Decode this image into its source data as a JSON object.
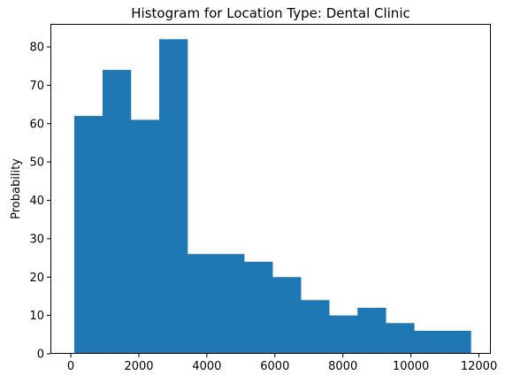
{
  "chart_data": {
    "type": "bar",
    "title": "Histogram for Location Type: Dental Clinic",
    "xlabel": "",
    "ylabel": "Probability",
    "bin_edges": [
      100,
      933,
      1766,
      2599,
      3432,
      4265,
      5098,
      5931,
      6764,
      7597,
      8430,
      9263,
      10096,
      10929,
      11762
    ],
    "values": [
      62,
      74,
      61,
      82,
      26,
      26,
      24,
      20,
      14,
      10,
      12,
      8,
      6,
      6
    ],
    "xlim": [
      -600,
      12350
    ],
    "ylim": [
      0,
      86
    ],
    "xticks": [
      0,
      2000,
      4000,
      6000,
      8000,
      10000,
      12000
    ],
    "xtick_labels": [
      "0",
      "2000",
      "4000",
      "6000",
      "8000",
      "10000",
      "12000"
    ],
    "yticks": [
      0,
      10,
      20,
      30,
      40,
      50,
      60,
      70,
      80
    ],
    "ytick_labels": [
      "0",
      "10",
      "20",
      "30",
      "40",
      "50",
      "60",
      "70",
      "80"
    ],
    "grid": false,
    "bar_color": "#1f77b4"
  }
}
